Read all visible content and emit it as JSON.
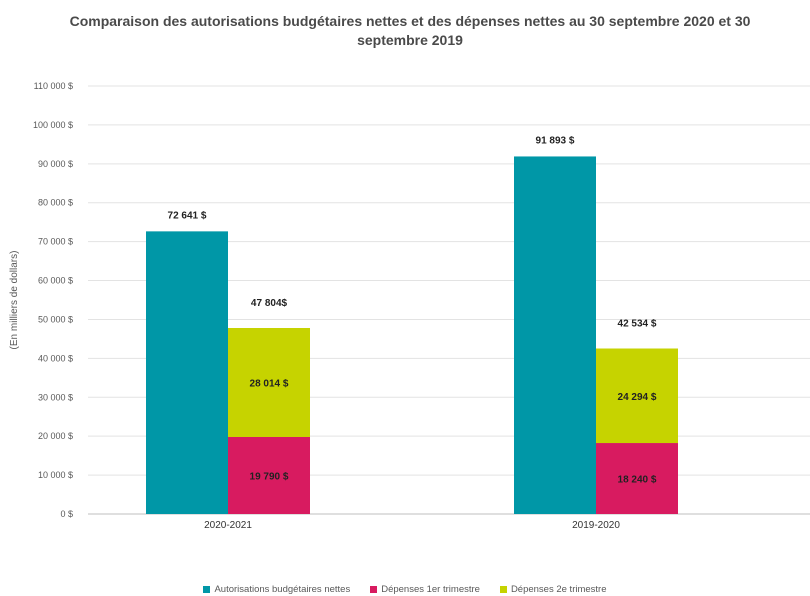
{
  "chart_data": {
    "type": "bar",
    "title": "Comparaison des autorisations budgétaires nettes et des dépenses nettes au 30 septembre 2020 et 30 septembre 2019",
    "ylabel": "(En milliers de dollars)",
    "xlabel": "",
    "ylim": [
      0,
      110000
    ],
    "yticks": [
      "0 $",
      "10 000 $",
      "20 000 $",
      "30 000 $",
      "40 000 $",
      "50 000 $",
      "60 000 $",
      "70 000 $",
      "80 000 $",
      "90 000 $",
      "100 000 $",
      "110 000 $"
    ],
    "categories": [
      "2020-2021",
      "2019-2020"
    ],
    "series": [
      {
        "name": "Autorisations budgétaires nettes",
        "values": [
          72641,
          91893
        ],
        "labels": [
          "72 641 $",
          "91 893 $"
        ],
        "color": "#0097a7",
        "stack": "auth"
      },
      {
        "name": "Dépenses 1er trimestre",
        "values": [
          19790,
          18240
        ],
        "labels": [
          "19 790 $",
          "18 240 $"
        ],
        "color": "#d81b60",
        "stack": "dep"
      },
      {
        "name": "Dépenses 2e trimestre",
        "values": [
          28014,
          24294
        ],
        "labels": [
          "28 014 $",
          "24 294 $"
        ],
        "color": "#c6d300",
        "stack": "dep"
      }
    ],
    "stack_totals": {
      "dep": [
        "47 804$",
        "42 534 $"
      ]
    },
    "grid": true,
    "legend_position": "bottom"
  }
}
